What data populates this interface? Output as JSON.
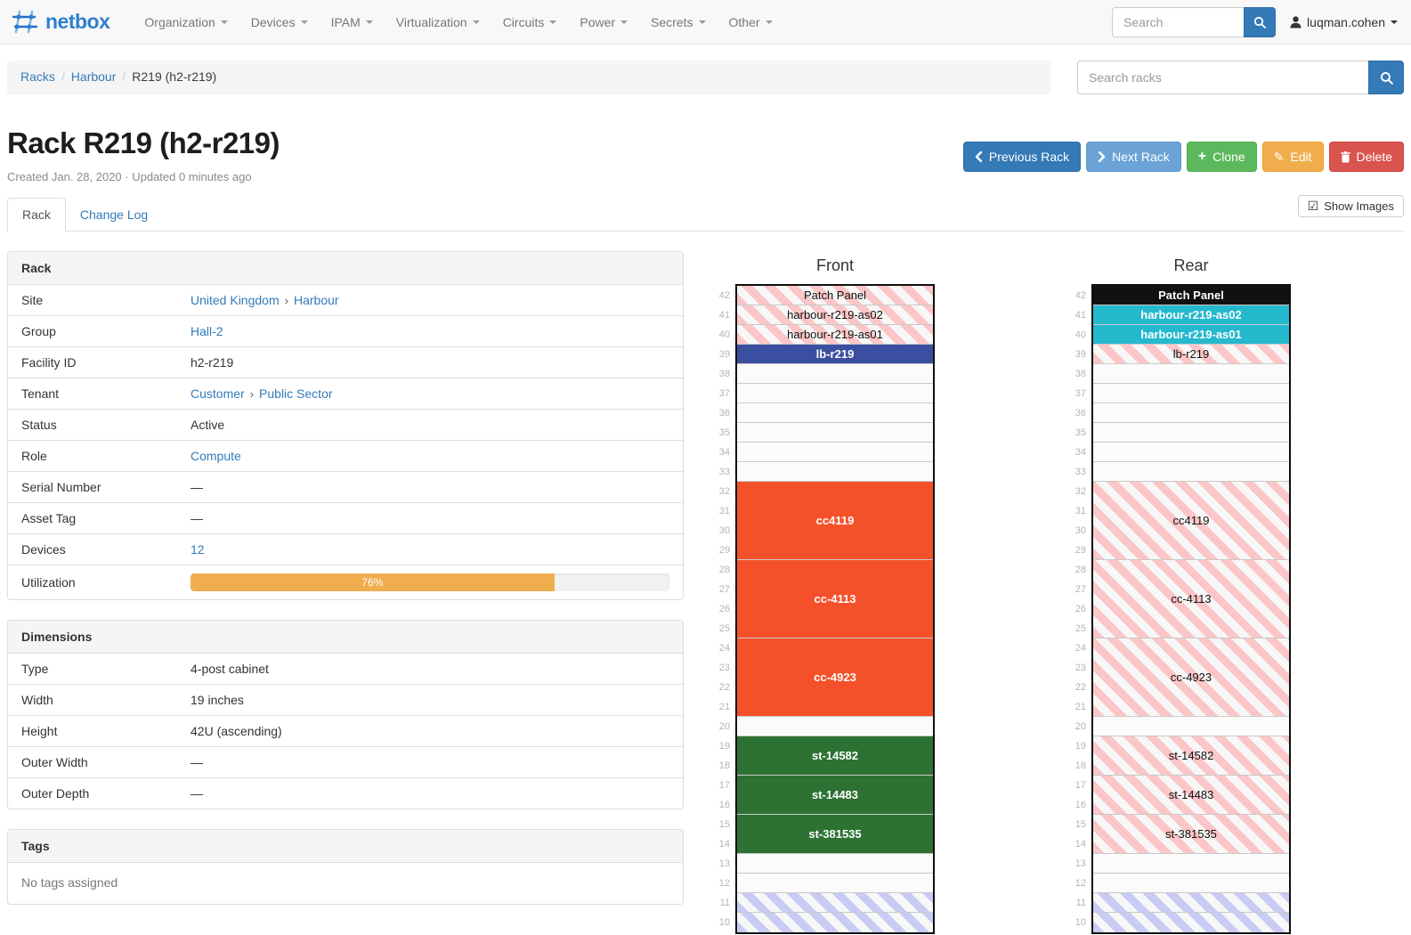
{
  "navbar": {
    "brand": "netbox",
    "menus": [
      {
        "label": "Organization"
      },
      {
        "label": "Devices"
      },
      {
        "label": "IPAM"
      },
      {
        "label": "Virtualization"
      },
      {
        "label": "Circuits"
      },
      {
        "label": "Power"
      },
      {
        "label": "Secrets"
      },
      {
        "label": "Other"
      }
    ],
    "search_placeholder": "Search",
    "user": "luqman.cohen"
  },
  "breadcrumb": {
    "items": [
      {
        "label": "Racks",
        "link": true
      },
      {
        "label": "Harbour",
        "link": true
      },
      {
        "label": "R219 (h2-r219)",
        "link": false
      }
    ],
    "search_placeholder": "Search racks"
  },
  "actions": {
    "previous": "Previous Rack",
    "next": "Next Rack",
    "clone": "Clone",
    "edit": "Edit",
    "delete": "Delete"
  },
  "page": {
    "title": "Rack R219 (h2-r219)",
    "meta": "Created Jan. 28, 2020 · Updated 0 minutes ago"
  },
  "tabs": {
    "rack": "Rack",
    "changelog": "Change Log",
    "show_images": "Show Images"
  },
  "rack_panel": {
    "title": "Rack",
    "rows": [
      {
        "label": "Site",
        "parts": [
          {
            "text": "United Kingdom",
            "link": true
          },
          {
            "text": "Harbour",
            "link": true
          }
        ]
      },
      {
        "label": "Group",
        "parts": [
          {
            "text": "Hall-2",
            "link": true
          }
        ]
      },
      {
        "label": "Facility ID",
        "parts": [
          {
            "text": "h2-r219",
            "link": false
          }
        ]
      },
      {
        "label": "Tenant",
        "parts": [
          {
            "text": "Customer",
            "link": true
          },
          {
            "text": "Public Sector",
            "link": true
          }
        ]
      },
      {
        "label": "Status",
        "parts": [
          {
            "text": "Active",
            "link": false
          }
        ]
      },
      {
        "label": "Role",
        "parts": [
          {
            "text": "Compute",
            "link": true
          }
        ]
      },
      {
        "label": "Serial Number",
        "parts": [
          {
            "text": "—",
            "link": false
          }
        ]
      },
      {
        "label": "Asset Tag",
        "parts": [
          {
            "text": "—",
            "link": false
          }
        ]
      },
      {
        "label": "Devices",
        "parts": [
          {
            "text": "12",
            "link": true
          }
        ]
      },
      {
        "label": "Utilization",
        "progress": {
          "percent": 76,
          "label": "76%",
          "color": "#f0ad4e"
        }
      }
    ]
  },
  "dimensions_panel": {
    "title": "Dimensions",
    "rows": [
      {
        "label": "Type",
        "parts": [
          {
            "text": "4-post cabinet",
            "link": false
          }
        ]
      },
      {
        "label": "Width",
        "parts": [
          {
            "text": "19 inches",
            "link": false
          }
        ]
      },
      {
        "label": "Height",
        "parts": [
          {
            "text": "42U (ascending)",
            "link": false
          }
        ]
      },
      {
        "label": "Outer Width",
        "parts": [
          {
            "text": "—",
            "link": false
          }
        ]
      },
      {
        "label": "Outer Depth",
        "parts": [
          {
            "text": "—",
            "link": false
          }
        ]
      }
    ]
  },
  "tags_panel": {
    "title": "Tags",
    "body": "No tags assigned"
  },
  "colors": {
    "link": "#337ab7",
    "primary_button": "#337ab7",
    "next_button": "#6ba3d6",
    "clone_button": "#5cb85c",
    "edit_button": "#f0ad4e",
    "delete_button": "#d9534f",
    "utilization_bar": "#f0ad4e",
    "device_orange": "#f4512a",
    "device_green": "#2d7233",
    "device_navy": "#3b4fa0",
    "device_cyan": "#25b9ce",
    "device_black": "#111111",
    "reserved_red_hatch": "#fbc6c7",
    "reserved_blue_hatch": "#c8ccf4"
  },
  "elevations": {
    "top_unit": 42,
    "bottom_visible_unit": 10,
    "front": {
      "title": "Front",
      "units": [
        {
          "u": 42,
          "size": 1,
          "label": "Patch Panel",
          "kind": "hatch-red"
        },
        {
          "u": 41,
          "size": 1,
          "label": "harbour-r219-as02",
          "kind": "hatch-red"
        },
        {
          "u": 40,
          "size": 1,
          "label": "harbour-r219-as01",
          "kind": "hatch-red"
        },
        {
          "u": 39,
          "size": 1,
          "label": "lb-r219",
          "kind": "solid",
          "color": "#3b4fa0"
        },
        {
          "u": 38,
          "size": 1,
          "kind": "empty"
        },
        {
          "u": 37,
          "size": 1,
          "kind": "empty"
        },
        {
          "u": 36,
          "size": 1,
          "kind": "empty"
        },
        {
          "u": 35,
          "size": 1,
          "kind": "empty"
        },
        {
          "u": 34,
          "size": 1,
          "kind": "empty"
        },
        {
          "u": 33,
          "size": 1,
          "kind": "empty"
        },
        {
          "u": 32,
          "size": 4,
          "label": "cc4119",
          "kind": "solid",
          "color": "#f4512a"
        },
        {
          "u": 28,
          "size": 4,
          "label": "cc-4113",
          "kind": "solid",
          "color": "#f4512a"
        },
        {
          "u": 24,
          "size": 4,
          "label": "cc-4923",
          "kind": "solid",
          "color": "#f4512a"
        },
        {
          "u": 20,
          "size": 1,
          "kind": "empty"
        },
        {
          "u": 19,
          "size": 2,
          "label": "st-14582",
          "kind": "solid",
          "color": "#2d7233"
        },
        {
          "u": 17,
          "size": 2,
          "label": "st-14483",
          "kind": "solid",
          "color": "#2d7233"
        },
        {
          "u": 15,
          "size": 2,
          "label": "st-381535",
          "kind": "solid",
          "color": "#2d7233"
        },
        {
          "u": 13,
          "size": 1,
          "kind": "empty"
        },
        {
          "u": 12,
          "size": 1,
          "kind": "empty"
        },
        {
          "u": 11,
          "size": 1,
          "kind": "hatch-blue"
        },
        {
          "u": 10,
          "size": 1,
          "kind": "hatch-blue"
        }
      ]
    },
    "rear": {
      "title": "Rear",
      "units": [
        {
          "u": 42,
          "size": 1,
          "label": "Patch Panel",
          "kind": "solid",
          "color": "#111111"
        },
        {
          "u": 41,
          "size": 1,
          "label": "harbour-r219-as02",
          "kind": "solid",
          "color": "#25b9ce"
        },
        {
          "u": 40,
          "size": 1,
          "label": "harbour-r219-as01",
          "kind": "solid",
          "color": "#25b9ce"
        },
        {
          "u": 39,
          "size": 1,
          "label": "lb-r219",
          "kind": "hatch-red"
        },
        {
          "u": 38,
          "size": 1,
          "kind": "empty"
        },
        {
          "u": 37,
          "size": 1,
          "kind": "empty"
        },
        {
          "u": 36,
          "size": 1,
          "kind": "empty"
        },
        {
          "u": 35,
          "size": 1,
          "kind": "empty"
        },
        {
          "u": 34,
          "size": 1,
          "kind": "empty"
        },
        {
          "u": 33,
          "size": 1,
          "kind": "empty"
        },
        {
          "u": 32,
          "size": 4,
          "label": "cc4119",
          "kind": "hatch-red"
        },
        {
          "u": 28,
          "size": 4,
          "label": "cc-4113",
          "kind": "hatch-red"
        },
        {
          "u": 24,
          "size": 4,
          "label": "cc-4923",
          "kind": "hatch-red"
        },
        {
          "u": 20,
          "size": 1,
          "kind": "empty"
        },
        {
          "u": 19,
          "size": 2,
          "label": "st-14582",
          "kind": "hatch-red"
        },
        {
          "u": 17,
          "size": 2,
          "label": "st-14483",
          "kind": "hatch-red"
        },
        {
          "u": 15,
          "size": 2,
          "label": "st-381535",
          "kind": "hatch-red"
        },
        {
          "u": 13,
          "size": 1,
          "kind": "empty"
        },
        {
          "u": 12,
          "size": 1,
          "kind": "empty"
        },
        {
          "u": 11,
          "size": 1,
          "kind": "hatch-blue"
        },
        {
          "u": 10,
          "size": 1,
          "kind": "hatch-blue"
        }
      ]
    }
  }
}
